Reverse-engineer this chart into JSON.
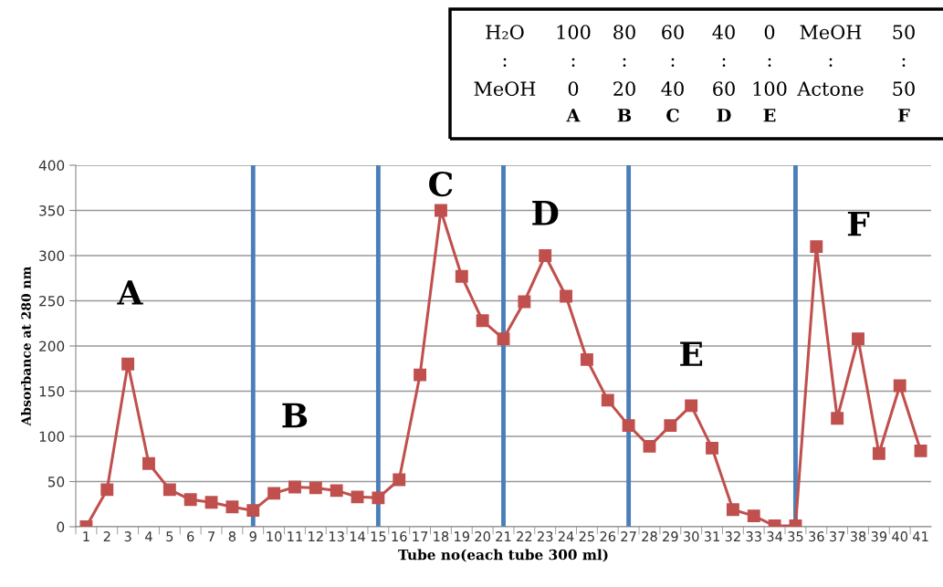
{
  "chart_data": {
    "type": "line",
    "xlabel": "Tube no(each tube 300 ml)",
    "ylabel": "Absorbance at 280 nm",
    "categories": [
      "1",
      "2",
      "3",
      "4",
      "5",
      "6",
      "7",
      "8",
      "9",
      "10",
      "11",
      "12",
      "13",
      "14",
      "15",
      "16",
      "17",
      "18",
      "19",
      "20",
      "21",
      "22",
      "23",
      "24",
      "25",
      "26",
      "27",
      "28",
      "29",
      "30",
      "31",
      "32",
      "33",
      "34",
      "35",
      "36",
      "37",
      "38",
      "39",
      "40",
      "41"
    ],
    "series": [
      {
        "color": "#c0504d",
        "values": [
          0,
          41,
          180,
          70,
          41,
          30,
          27,
          22,
          18,
          37,
          44,
          43,
          40,
          33,
          32,
          52,
          168,
          350,
          277,
          228,
          208,
          249,
          300,
          255,
          185,
          140,
          112,
          89,
          112,
          134,
          87,
          19,
          12,
          1,
          1,
          310,
          120,
          208,
          81,
          156,
          84
        ]
      }
    ],
    "ylim": [
      0,
      400
    ],
    "yticks": [
      0,
      50,
      100,
      150,
      200,
      250,
      300,
      350,
      400
    ],
    "grid": "y",
    "marker": "square",
    "line_style": "solid",
    "legend": false,
    "ref_lines": [
      {
        "axis": "x",
        "value": "9",
        "color": "#4a7ebb"
      },
      {
        "axis": "x",
        "value": "15",
        "color": "#4a7ebb"
      },
      {
        "axis": "x",
        "value": "21",
        "color": "#4a7ebb"
      },
      {
        "axis": "x",
        "value": "27",
        "color": "#4a7ebb"
      },
      {
        "axis": "x",
        "value": "35",
        "color": "#4a7ebb"
      }
    ],
    "annotations": [
      "A",
      "B",
      "C",
      "D",
      "E",
      "F",
      "H₂O\t100\t80\t60\t40\t0\tMeOH\t50",
      ":\t:\t:\t:\t:\t:\t:\t:",
      "MeOH\t0\t20\t40\t60\t100\tActone\t50",
      "\tA\tB\tC\tD\tE\t\tF"
    ]
  }
}
